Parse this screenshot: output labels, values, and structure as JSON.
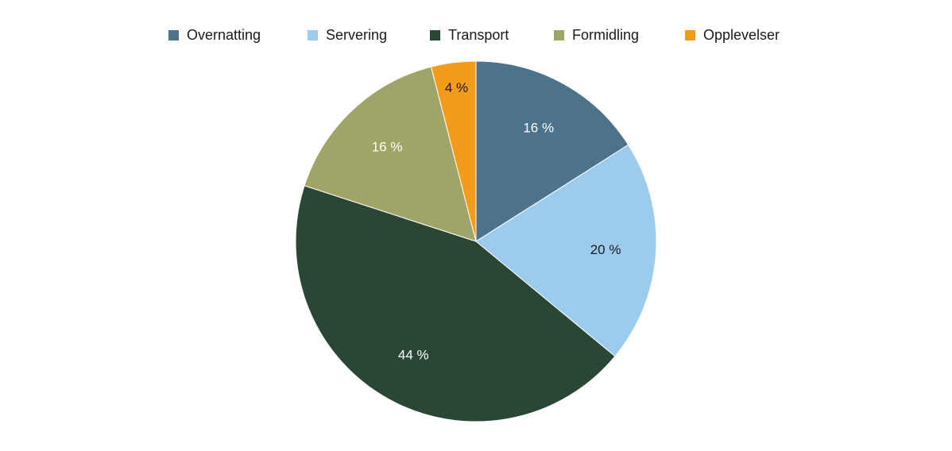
{
  "chart_data": {
    "type": "pie",
    "title": "",
    "categories": [
      "Overnatting",
      "Servering",
      "Transport",
      "Formidling",
      "Opplevelser"
    ],
    "values": [
      16,
      20,
      44,
      16,
      4
    ],
    "value_labels": [
      "16 %",
      "20 %",
      "44 %",
      "16 %",
      "4 %"
    ],
    "colors": [
      "#4d738c",
      "#9ccbec",
      "#2a4736",
      "#a1a467",
      "#f29b1d"
    ],
    "label_colors": [
      "#ffffff",
      "#1a1a1a",
      "#ffffff",
      "#ffffff",
      "#1a1a1a"
    ],
    "legend_position": "top-center",
    "start_angle": "12 o'clock",
    "direction": "clockwise"
  }
}
